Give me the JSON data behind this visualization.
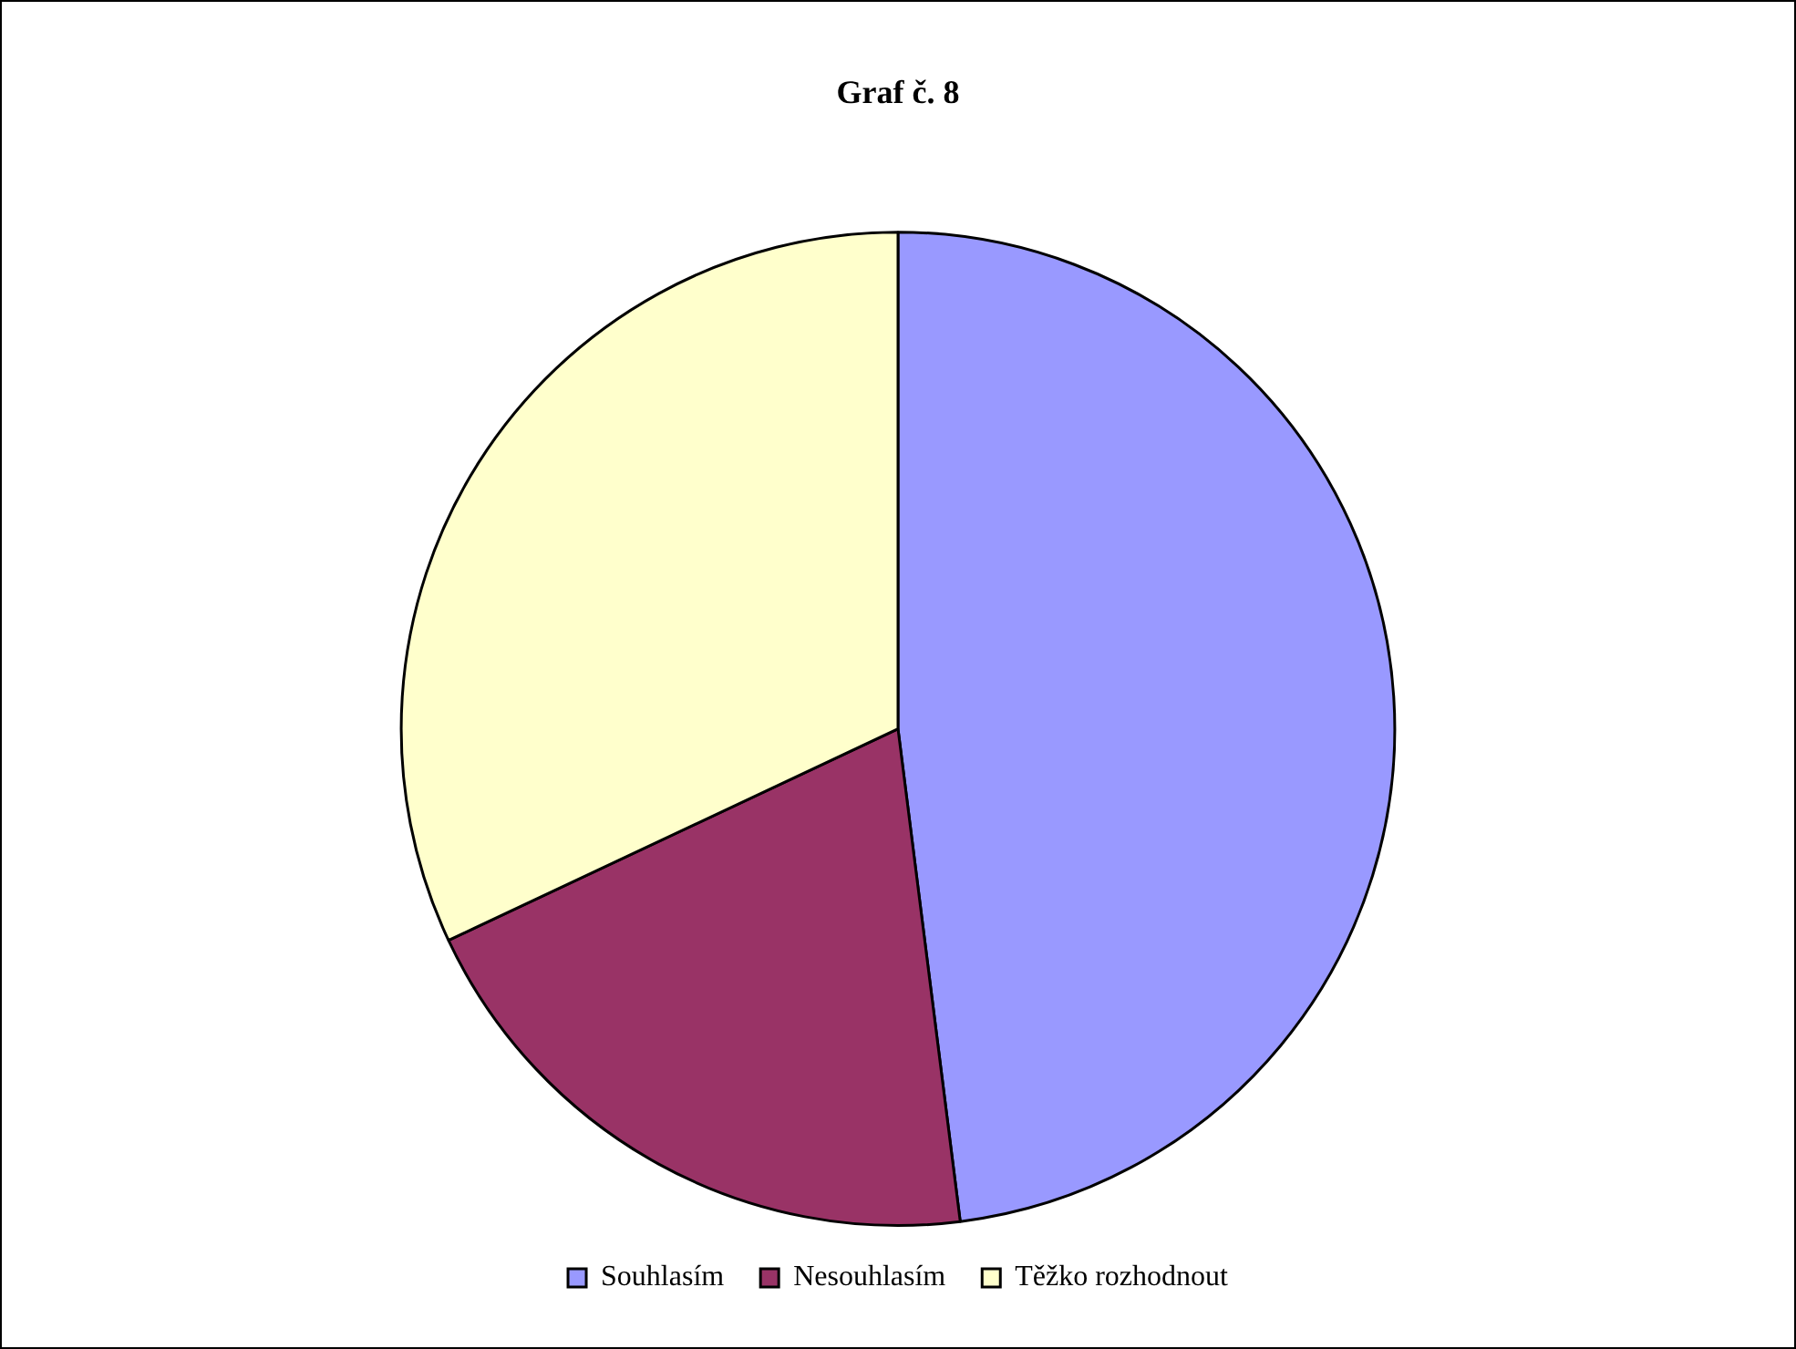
{
  "chart_data": {
    "type": "pie",
    "title": "Graf č. 8",
    "categories": [
      "Souhlasím",
      "Nesouhlasím",
      "Těžko rozhodnout"
    ],
    "values": [
      48,
      20,
      32
    ],
    "colors": [
      "#9999ff",
      "#993366",
      "#ffffcc"
    ],
    "legend": "bottom"
  }
}
